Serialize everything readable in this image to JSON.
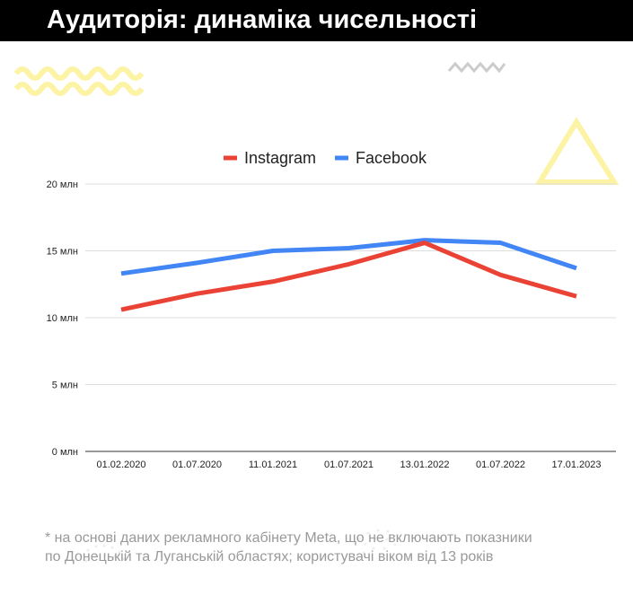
{
  "page": {
    "title": "Аудиторія: динаміка чисельності",
    "footnote_line1": "* на основі даних рекламного кабінету Meta, що не включають показники",
    "footnote_line2": "по Донецькій та Луганській областях; користувачі віком від 13 років"
  },
  "colors": {
    "accent_yellow": "#FCF3A4",
    "deco_gray": "#CCCCCC",
    "grid": "#DDDDDD",
    "axis": "#333333"
  },
  "chart_data": {
    "type": "line",
    "title": "",
    "xlabel": "",
    "ylabel": "",
    "categories": [
      "01.02.2020",
      "01.07.2020",
      "11.01.2021",
      "01.07.2021",
      "13.01.2022",
      "01.07.2022",
      "17.01.2023"
    ],
    "series": [
      {
        "name": "Instagram",
        "color": "#EA4335",
        "values": [
          10.6,
          11.8,
          12.7,
          14.0,
          15.6,
          13.2,
          11.6
        ]
      },
      {
        "name": "Facebook",
        "color": "#4285F4",
        "values": [
          13.3,
          14.1,
          15.0,
          15.2,
          15.8,
          15.6,
          13.7
        ]
      }
    ],
    "ylim": [
      0,
      20
    ],
    "yticks": [
      0,
      5,
      10,
      15,
      20
    ],
    "ytick_labels": [
      "0 млн",
      "5 млн",
      "10 млн",
      "15 млн",
      "20 млн"
    ],
    "grid": true,
    "legend_position": "top-center"
  }
}
